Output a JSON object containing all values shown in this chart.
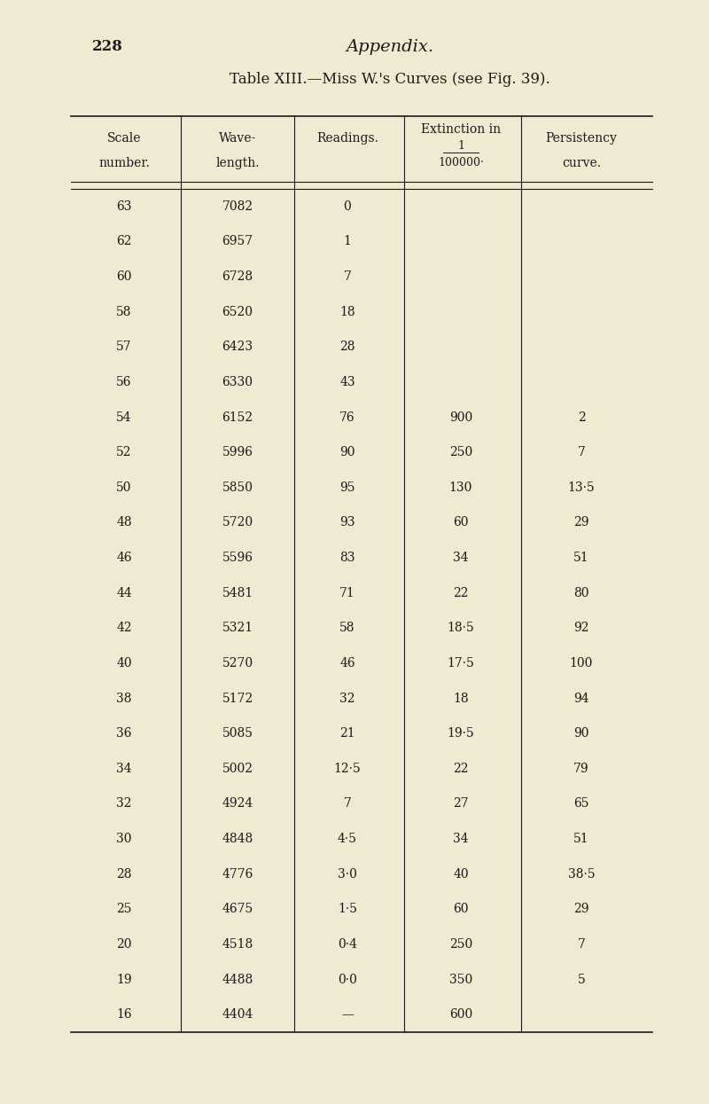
{
  "page_number": "228",
  "page_title": "Appendix.",
  "table_title": "Table XIII.—Miss W.'s Curves (see Fig. 39).",
  "col_headers": [
    "Scale\nnumber.",
    "Wave-\nlength.",
    "Readings.",
    "Extinction in\n\u00001\n100000·",
    "Persistency\ncurve."
  ],
  "col_header_line1": [
    "Scale",
    "Wave-",
    "Readings.",
    "Extinction in",
    "Persistency"
  ],
  "col_header_line2": [
    "number.",
    "length.",
    "",
    "1",
    "curve."
  ],
  "col_header_line3": [
    "",
    "",
    "",
    "100000·",
    ""
  ],
  "rows": [
    [
      63,
      7082,
      "0",
      "",
      ""
    ],
    [
      62,
      6957,
      "1",
      "",
      ""
    ],
    [
      60,
      6728,
      "7",
      "",
      ""
    ],
    [
      58,
      6520,
      "18",
      "",
      ""
    ],
    [
      57,
      6423,
      "28",
      "",
      ""
    ],
    [
      56,
      6330,
      "43",
      "",
      ""
    ],
    [
      54,
      6152,
      "76",
      "900",
      "2"
    ],
    [
      52,
      5996,
      "90",
      "250",
      "7"
    ],
    [
      50,
      5850,
      "95",
      "130",
      "13·5"
    ],
    [
      48,
      5720,
      "93",
      "60",
      "29"
    ],
    [
      46,
      5596,
      "83",
      "34",
      "51"
    ],
    [
      44,
      5481,
      "71",
      "22",
      "80"
    ],
    [
      42,
      5321,
      "58",
      "18·5",
      "92"
    ],
    [
      40,
      5270,
      "46",
      "17·5",
      "100"
    ],
    [
      38,
      5172,
      "32",
      "18",
      "94"
    ],
    [
      36,
      5085,
      "21",
      "19·5",
      "90"
    ],
    [
      34,
      5002,
      "12·5",
      "22",
      "79"
    ],
    [
      32,
      4924,
      "7",
      "27",
      "65"
    ],
    [
      30,
      4848,
      "4·5",
      "34",
      "51"
    ],
    [
      28,
      4776,
      "3·0",
      "40",
      "38·5"
    ],
    [
      25,
      4675,
      "1·5",
      "60",
      "29"
    ],
    [
      20,
      4518,
      "0·4",
      "250",
      "7"
    ],
    [
      19,
      4488,
      "0·0",
      "350",
      "5"
    ],
    [
      16,
      4404,
      "—",
      "600",
      ""
    ]
  ],
  "bg_color": "#f0ead2",
  "text_color": "#1a1a1a",
  "font_size_title": 13,
  "font_size_header": 11,
  "font_size_data": 11,
  "font_size_page": 12
}
